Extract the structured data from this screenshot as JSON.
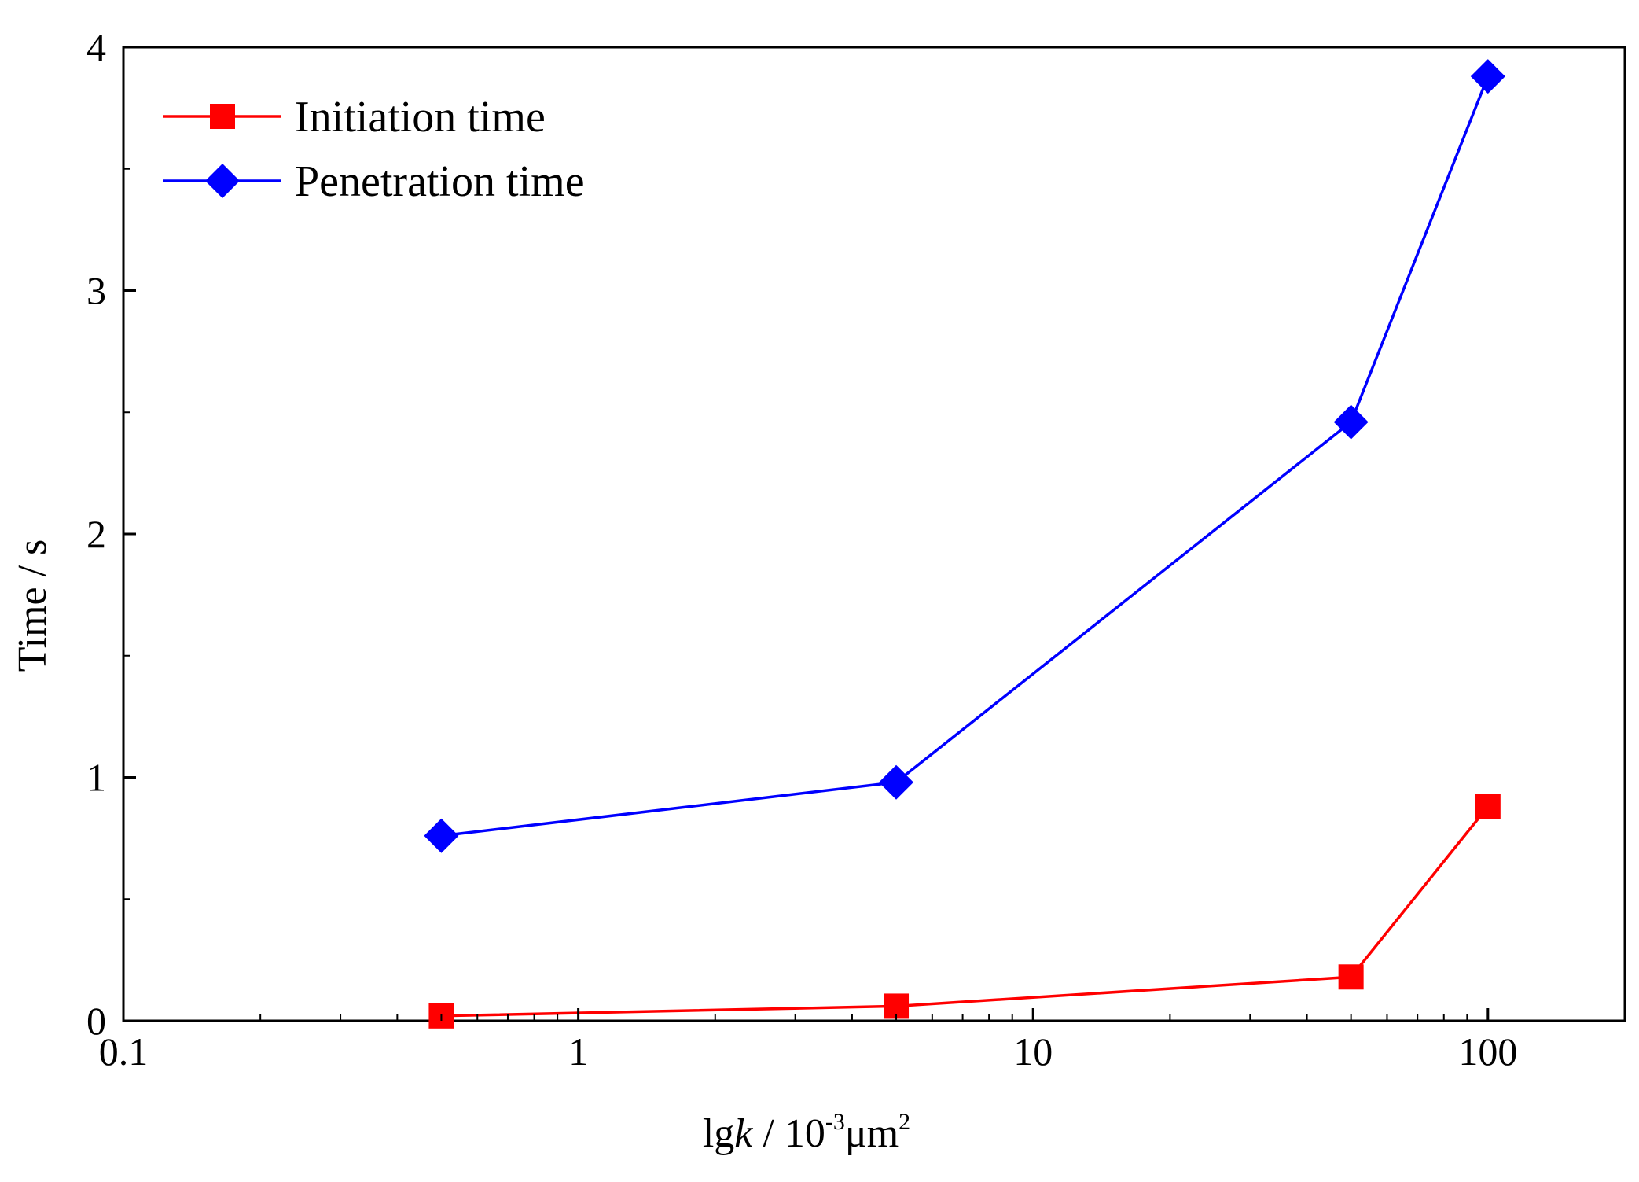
{
  "chart_data": {
    "type": "line",
    "title": "",
    "xscale": "log",
    "xlim": [
      0.1,
      200
    ],
    "ylim": [
      0,
      4
    ],
    "x_ticks": [
      0.1,
      1,
      10,
      100
    ],
    "x_tick_labels": [
      "0.1",
      "1",
      "10",
      "100"
    ],
    "y_ticks": [
      0,
      1,
      2,
      3,
      4
    ],
    "y_tick_labels": [
      "0",
      "1",
      "2",
      "3",
      "4"
    ],
    "xlabel": {
      "prefix": "lg",
      "italic": "k",
      "middle": " / 10",
      "sup1": "-3",
      "unit": "μm",
      "sup2": "2"
    },
    "ylabel": "Time / s",
    "grid": false,
    "legend_position": "top-left",
    "series": [
      {
        "name": "Initiation time",
        "color": "#ff0000",
        "marker": "square",
        "x": [
          0.5,
          5,
          50,
          100
        ],
        "y": [
          0.02,
          0.06,
          0.18,
          0.88
        ]
      },
      {
        "name": "Penetration time",
        "color": "#0000ff",
        "marker": "diamond",
        "x": [
          0.5,
          5,
          50,
          100
        ],
        "y": [
          0.76,
          0.98,
          2.46,
          3.88
        ]
      }
    ]
  }
}
